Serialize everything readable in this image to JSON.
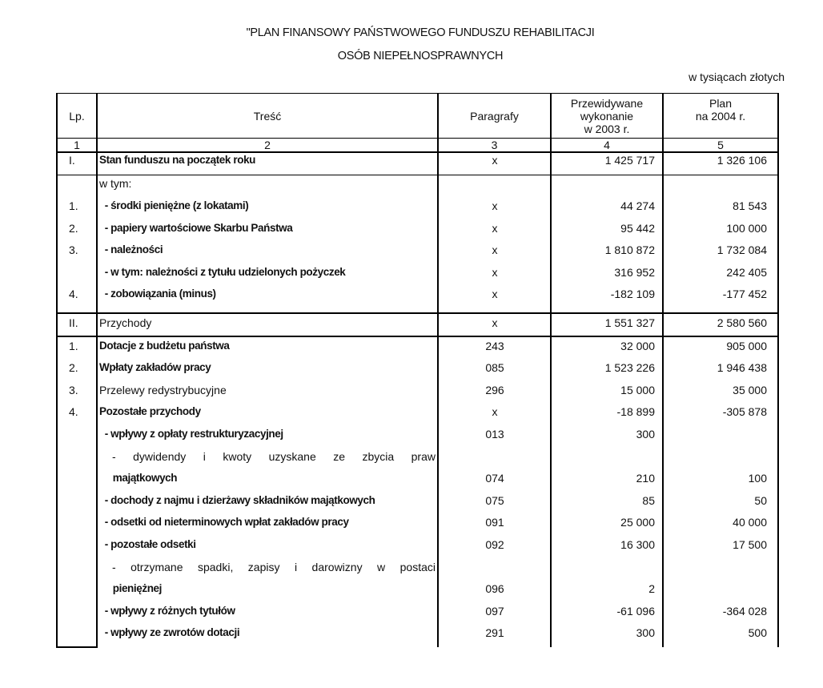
{
  "title_line1": "\"PLAN FINANSOWY PAŃSTWOWEGO FUNDUSZU REHABILITACJI",
  "title_line2": "OSÓB NIEPEŁNOSPRAWNYCH",
  "unit": "w tysiącach złotych",
  "headers": {
    "lp": "Lp.",
    "tresc": "Treść",
    "paragrafy": "Paragrafy",
    "wykonanie_line1": "Przewidywane",
    "wykonanie_line2": "wykonanie",
    "wykonanie_line3": "w 2003 r.",
    "plan_line1": "Plan",
    "plan_line2": "na 2004 r."
  },
  "column_numbers": [
    "1",
    "2",
    "3",
    "4",
    "5"
  ],
  "rows": [
    {
      "lp": "I.",
      "text": "Stan funduszu na początek roku",
      "par": "x",
      "v2003": "1 425 717",
      "v2004": "1 326 106",
      "bold": true
    },
    {
      "lp": "",
      "text": "w tym:",
      "par": "",
      "v2003": "",
      "v2004": ""
    },
    {
      "lp": "1.",
      "text": "  - środki pieniężne (z lokatami)",
      "par": "x",
      "v2003": "44 274",
      "v2004": "81 543",
      "bold": true
    },
    {
      "lp": "2.",
      "text": "  - papiery wartościowe Skarbu Państwa",
      "par": "x",
      "v2003": "95 442",
      "v2004": "100 000",
      "bold": true
    },
    {
      "lp": "3.",
      "text": "  - należności",
      "par": "x",
      "v2003": "1 810 872",
      "v2004": "1 732 084",
      "bold": true
    },
    {
      "lp": "",
      "text": "  - w tym: należności z tytułu udzielonych pożyczek",
      "par": "x",
      "v2003": "316 952",
      "v2004": "242 405",
      "bold": true
    },
    {
      "lp": "4.",
      "text": "  - zobowiązania (minus)",
      "par": "x",
      "v2003": "-182 109",
      "v2004": "-177 452",
      "bold": true
    },
    {
      "lp": "II.",
      "text": "Przychody",
      "par": "x",
      "v2003": "1 551 327",
      "v2004": "2 580 560"
    },
    {
      "lp": "1.",
      "text": "Dotacje z budżetu państwa",
      "par": "243",
      "v2003": "32 000",
      "v2004": "905 000",
      "bold": true
    },
    {
      "lp": "2.",
      "text": "Wpłaty zakładów pracy",
      "par": "085",
      "v2003": "1 523 226",
      "v2004": "1 946 438",
      "bold": true
    },
    {
      "lp": "3.",
      "text": "Przelewy redystrybucyjne",
      "par": "296",
      "v2003": "15 000",
      "v2004": "35 000"
    },
    {
      "lp": "4.",
      "text": "Pozostałe przychody",
      "par": "x",
      "v2003": "-18 899",
      "v2004": "-305 878",
      "bold": true
    },
    {
      "lp": "",
      "text": "  - wpływy z opłaty restrukturyzacyjnej",
      "par": "013",
      "v2003": "300",
      "v2004": "",
      "bold": true
    },
    {
      "lp": "",
      "text": "- dywidendy i kwoty uzyskane ze zbycia praw",
      "par": "",
      "v2003": "",
      "v2004": "",
      "justify": true
    },
    {
      "lp": "",
      "text": "     majątkowych",
      "par": "074",
      "v2003": "210",
      "v2004": "100",
      "bold": true
    },
    {
      "lp": "",
      "text": "  - dochody z najmu i dzierżawy składników majątkowych",
      "par": "075",
      "v2003": "85",
      "v2004": "50",
      "bold": true
    },
    {
      "lp": "",
      "text": "  - odsetki od nieterminowych wpłat zakładów pracy",
      "par": "091",
      "v2003": "25 000",
      "v2004": "40 000",
      "bold": true
    },
    {
      "lp": "",
      "text": "  - pozostałe odsetki",
      "par": "092",
      "v2003": "16 300",
      "v2004": "17 500",
      "bold": true
    },
    {
      "lp": "",
      "text": "- otrzymane spadki, zapisy i darowizny w postaci",
      "par": "",
      "v2003": "",
      "v2004": "",
      "justify": true
    },
    {
      "lp": "",
      "text": "     pieniężnej",
      "par": "096",
      "v2003": "2",
      "v2004": "",
      "bold": true
    },
    {
      "lp": "",
      "text": "  - wpływy z różnych tytułów",
      "par": "097",
      "v2003": "-61 096",
      "v2004": "-364 028",
      "bold": true
    },
    {
      "lp": "",
      "text": "  - wpływy ze zwrotów dotacji",
      "par": "291",
      "v2003": "300",
      "v2004": "500",
      "bold": true
    }
  ]
}
